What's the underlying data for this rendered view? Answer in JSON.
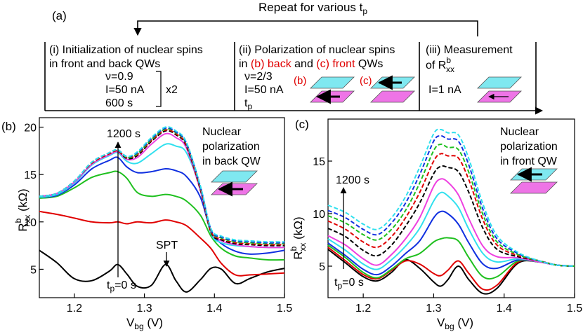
{
  "schematic": {
    "panel_label": "(a)",
    "repeat_text": "Repeat for various t",
    "repeat_sub": "p",
    "step1": {
      "line1": "(i) Initialization of nuclear spins",
      "line2": "in front and back QWs",
      "nu": "ν=0.9",
      "current": "I=50 nA",
      "repeat": "x2",
      "time": "600 s"
    },
    "step2": {
      "line1": "(ii) Polarization of nuclear spins",
      "line2_pre": "in ",
      "line2_b": "(b) back",
      "line2_mid": " and ",
      "line2_c": "(c) front",
      "line2_post": " QWs",
      "nu": "ν=2/3",
      "current": "I=50 nA",
      "tp": "t",
      "tp_sub": "p",
      "label_b": "(b)",
      "label_c": "(c)"
    },
    "step3": {
      "line1": "(iii) Measurement",
      "line2": "of R",
      "r_sup": "b",
      "r_sub": "xx",
      "current": "I=1 nA"
    }
  },
  "colors": {
    "top_layer": "#7fe8f0",
    "bottom_layer": "#ee74e6",
    "red_text": "#e00000"
  },
  "chart_data": [
    {
      "type": "line",
      "panel_label": "(b)",
      "xlabel": "V",
      "xlabel_sub": "bg",
      "xlabel_unit": " (V)",
      "ylabel": "R",
      "ylabel_sup": "b",
      "ylabel_sub": "xx",
      "ylabel_unit": " (kΩ)",
      "xlim": [
        1.15,
        1.5
      ],
      "ylim": [
        2,
        21
      ],
      "xticks": [
        1.2,
        1.3,
        1.4,
        1.5
      ],
      "yticks": [
        5,
        10,
        15,
        20
      ],
      "xtick_labels": [
        "1.2",
        "1.3",
        "1.4",
        "1.5"
      ],
      "ytick_labels": [
        "5",
        "10",
        "15",
        "20"
      ],
      "legend_text": [
        "Nuclear",
        "polarization",
        "in back QW"
      ],
      "annotations": {
        "top": "1200 s",
        "bottom_main": "t",
        "bottom_sub": "p",
        "bottom_rest": "=0 s",
        "spt": "SPT"
      },
      "x": [
        1.15,
        1.175,
        1.2,
        1.225,
        1.25,
        1.262,
        1.275,
        1.29,
        1.31,
        1.33,
        1.345,
        1.36,
        1.38,
        1.395,
        1.41,
        1.43,
        1.45,
        1.475,
        1.5
      ],
      "series": [
        {
          "name": "0 s",
          "color": "#000000",
          "dash": false,
          "values": [
            7.0,
            5.7,
            4.0,
            3.8,
            4.8,
            5.5,
            4.5,
            3.2,
            3.3,
            5.5,
            3.8,
            2.6,
            3.9,
            5.1,
            5.0,
            3.5,
            4.0,
            4.7,
            5.1
          ]
        },
        {
          "name": "s1",
          "color": "#e00000",
          "dash": false,
          "values": [
            11.1,
            10.8,
            10.4,
            10.0,
            9.9,
            10.0,
            9.8,
            10.0,
            9.9,
            10.2,
            10.0,
            9.6,
            8.3,
            7.2,
            5.6,
            4.4,
            4.4,
            4.5,
            4.6
          ]
        },
        {
          "name": "s2",
          "color": "#1fc01f",
          "dash": false,
          "values": [
            12.5,
            12.7,
            13.6,
            14.7,
            15.2,
            15.3,
            14.6,
            13.1,
            12.7,
            12.9,
            12.7,
            12.2,
            10.7,
            8.5,
            7.2,
            6.4,
            6.2,
            6.0,
            6.0
          ]
        },
        {
          "name": "s3",
          "color": "#1030e0",
          "dash": false,
          "values": [
            12.6,
            12.8,
            13.9,
            15.6,
            16.5,
            16.8,
            15.8,
            15.2,
            15.3,
            15.6,
            15.4,
            14.8,
            12.6,
            9.0,
            7.7,
            6.9,
            6.6,
            6.7,
            7.0
          ]
        },
        {
          "name": "s4",
          "color": "#30e0ee",
          "dash": false,
          "values": [
            12.6,
            12.9,
            14.1,
            16.0,
            17.0,
            17.3,
            16.4,
            16.2,
            17.2,
            18.2,
            18.0,
            17.3,
            13.5,
            8.8,
            7.8,
            7.5,
            7.4,
            7.3,
            7.3
          ]
        },
        {
          "name": "s5",
          "color": "#ee40e0",
          "dash": false,
          "values": [
            12.7,
            13.0,
            14.2,
            16.1,
            17.1,
            17.4,
            16.6,
            16.8,
            18.2,
            19.3,
            18.9,
            17.8,
            13.3,
            9.0,
            8.0,
            7.6,
            7.4,
            7.3,
            7.3
          ]
        },
        {
          "name": "s6",
          "color": "#000000",
          "dash": true,
          "values": [
            12.7,
            13.0,
            14.3,
            16.2,
            17.2,
            17.5,
            16.7,
            17.0,
            18.5,
            19.6,
            19.2,
            18.0,
            13.4,
            8.9,
            8.1,
            7.7,
            7.6,
            7.5,
            7.5
          ]
        },
        {
          "name": "s7",
          "color": "#e00000",
          "dash": true,
          "values": [
            12.7,
            13.0,
            14.3,
            16.2,
            17.2,
            17.5,
            16.8,
            17.1,
            18.6,
            19.7,
            19.3,
            18.1,
            13.5,
            9.0,
            8.2,
            7.8,
            7.7,
            7.6,
            7.6
          ]
        },
        {
          "name": "s8",
          "color": "#1fc01f",
          "dash": true,
          "values": [
            12.7,
            13.0,
            14.3,
            16.3,
            17.3,
            17.6,
            16.8,
            17.2,
            18.7,
            19.8,
            19.4,
            18.2,
            13.6,
            9.1,
            8.3,
            7.9,
            7.8,
            7.7,
            7.7
          ]
        },
        {
          "name": "s9",
          "color": "#1030e0",
          "dash": true,
          "values": [
            12.7,
            13.0,
            14.3,
            16.3,
            17.3,
            17.6,
            16.9,
            17.3,
            18.8,
            19.9,
            19.5,
            18.3,
            13.7,
            9.2,
            8.4,
            8.0,
            7.9,
            7.8,
            7.8
          ]
        },
        {
          "name": "1200 s",
          "color": "#30e0ee",
          "dash": true,
          "values": [
            12.7,
            13.0,
            14.3,
            16.3,
            17.3,
            17.6,
            16.9,
            17.4,
            18.9,
            20.0,
            19.6,
            18.4,
            13.8,
            9.3,
            8.5,
            8.1,
            8.0,
            7.9,
            7.9
          ]
        }
      ]
    },
    {
      "type": "line",
      "panel_label": "(c)",
      "xlabel": "V",
      "xlabel_sub": "bg",
      "xlabel_unit": " (V)",
      "ylabel": "R",
      "ylabel_sup": "b",
      "ylabel_sub": "xx",
      "ylabel_unit": " (kΩ)",
      "xlim": [
        1.15,
        1.5
      ],
      "ylim": [
        2,
        19
      ],
      "xticks": [
        1.2,
        1.3,
        1.4,
        1.5
      ],
      "yticks": [
        5,
        10,
        15
      ],
      "xtick_labels": [
        "1.2",
        "1.3",
        "1.4",
        "1.5"
      ],
      "ytick_labels": [
        "5",
        "10",
        "15"
      ],
      "legend_text": [
        "Nuclear",
        "polarization",
        "in front QW"
      ],
      "annotations": {
        "top": "1200 s",
        "bottom_main": "t",
        "bottom_sub": "p",
        "bottom_rest": "=0 s"
      },
      "x": [
        1.15,
        1.175,
        1.2,
        1.22,
        1.24,
        1.26,
        1.28,
        1.3,
        1.31,
        1.32,
        1.335,
        1.35,
        1.37,
        1.39,
        1.42,
        1.45,
        1.475,
        1.5
      ],
      "series": [
        {
          "name": "0 s",
          "color": "#000000",
          "dash": false,
          "values": [
            6.6,
            5.3,
            4.0,
            3.6,
            4.4,
            5.6,
            4.8,
            3.5,
            3.1,
            3.7,
            5.0,
            3.7,
            2.4,
            2.9,
            5.3,
            5.4,
            5.1,
            5.0
          ]
        },
        {
          "name": "s1",
          "color": "#e00000",
          "dash": false,
          "values": [
            6.8,
            5.5,
            4.2,
            3.8,
            4.6,
            5.5,
            5.2,
            4.3,
            4.1,
            4.6,
            5.5,
            4.3,
            2.8,
            3.2,
            5.4,
            5.4,
            5.1,
            5.0
          ]
        },
        {
          "name": "s2",
          "color": "#1fc01f",
          "dash": false,
          "values": [
            7.0,
            5.8,
            4.4,
            3.9,
            4.7,
            5.7,
            6.2,
            7.3,
            7.6,
            7.7,
            7.4,
            5.8,
            4.0,
            4.0,
            5.5,
            5.4,
            5.1,
            5.0
          ]
        },
        {
          "name": "s3",
          "color": "#1030e0",
          "dash": false,
          "values": [
            7.2,
            6.0,
            4.7,
            4.2,
            5.0,
            6.2,
            7.4,
            9.6,
            10.2,
            10.0,
            9.0,
            7.2,
            5.2,
            4.8,
            5.6,
            5.4,
            5.1,
            5.0
          ]
        },
        {
          "name": "s4",
          "color": "#30e0ee",
          "dash": false,
          "values": [
            7.6,
            6.5,
            5.2,
            4.7,
            5.6,
            6.9,
            8.6,
            11.2,
            12.0,
            11.7,
            10.6,
            8.5,
            6.2,
            5.4,
            5.7,
            5.4,
            5.1,
            5.0
          ]
        },
        {
          "name": "s5",
          "color": "#ee40e0",
          "dash": false,
          "values": [
            7.9,
            7.0,
            5.7,
            5.1,
            6.1,
            7.6,
            9.6,
            12.6,
            13.3,
            13.0,
            11.8,
            9.5,
            6.9,
            5.9,
            5.8,
            5.4,
            5.1,
            5.0
          ]
        },
        {
          "name": "s6",
          "color": "#000000",
          "dash": true,
          "values": [
            8.6,
            7.8,
            6.5,
            6.0,
            7.0,
            8.8,
            11.0,
            13.8,
            14.5,
            14.4,
            14.0,
            12.0,
            8.6,
            6.6,
            5.9,
            5.5,
            5.1,
            5.0
          ]
        },
        {
          "name": "s7",
          "color": "#e00000",
          "dash": true,
          "values": [
            9.3,
            8.5,
            7.3,
            6.8,
            7.8,
            9.6,
            12.0,
            15.0,
            15.7,
            15.5,
            15.3,
            13.2,
            9.4,
            7.0,
            6.0,
            5.5,
            5.1,
            5.0
          ]
        },
        {
          "name": "s8",
          "color": "#1fc01f",
          "dash": true,
          "values": [
            9.8,
            9.1,
            8.0,
            7.5,
            8.5,
            10.3,
            12.9,
            16.0,
            16.6,
            16.3,
            16.1,
            13.9,
            9.9,
            7.3,
            6.1,
            5.5,
            5.1,
            5.0
          ]
        },
        {
          "name": "s9",
          "color": "#1030e0",
          "dash": true,
          "values": [
            10.3,
            9.6,
            8.5,
            8.0,
            9.1,
            11.0,
            13.7,
            16.9,
            17.4,
            17.1,
            16.9,
            14.6,
            10.4,
            7.6,
            6.2,
            5.5,
            5.1,
            5.0
          ]
        },
        {
          "name": "1200 s",
          "color": "#30e0ee",
          "dash": true,
          "values": [
            10.8,
            10.1,
            9.0,
            8.5,
            9.6,
            11.6,
            14.4,
            17.6,
            18.0,
            17.7,
            17.5,
            15.2,
            10.9,
            7.9,
            6.3,
            5.5,
            5.1,
            5.0
          ]
        }
      ]
    }
  ]
}
